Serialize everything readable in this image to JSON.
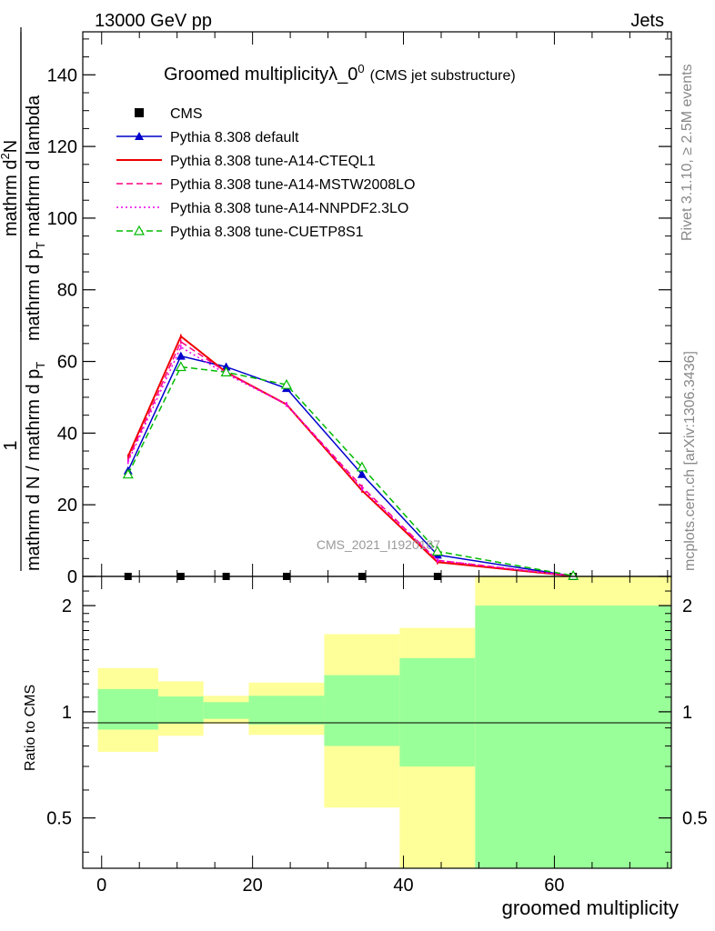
{
  "header": {
    "energy_label": "13000 GeV pp",
    "process_label": "Jets"
  },
  "side_labels": {
    "rivet": "Rivet 3.1.10, ≥ 2.5M events",
    "mcplots": "mcplots.cern.ch [arXiv:1306.3436]"
  },
  "watermark": "CMS_2021_I1920187",
  "chart_data": [
    {
      "type": "line",
      "title_main": "Groomed multiplicityλ_0",
      "title_sup": "0",
      "title_note": "(CMS jet substructure)",
      "ylabel_fraction_numerator": "1",
      "ylabel_fraction_denominator": "mathrm d N / mathrm d p",
      "ylabel_fraction_denominator_sub": "T",
      "ylabel_right_main": "mathrm d",
      "ylabel_right_sup": "2",
      "ylabel_right_rest": "N",
      "ylabel_right_denominator": "mathrm d p",
      "ylabel_right_denominator_sub": "T",
      "ylabel_right_denominator_rest": " mathrm d lambda",
      "xlim": [
        -2.5,
        75.5
      ],
      "ylim": [
        0,
        152
      ],
      "y_ticks": [
        0,
        20,
        40,
        60,
        80,
        100,
        120,
        140
      ],
      "y_tick_labels": [
        "0",
        "20",
        "40",
        "60",
        "80",
        "100",
        "120",
        "140"
      ],
      "grid": false,
      "legend_position": "top-left",
      "series": [
        {
          "name": "CMS",
          "color": "#000000",
          "style": "square-markers",
          "x": [
            3.5,
            10.5,
            16.5,
            24.5,
            34.5,
            44.5,
            62.5
          ],
          "y": [
            0,
            0,
            0,
            0,
            0,
            0,
            0
          ]
        },
        {
          "name": "Pythia 8.308 default",
          "color": "#0000cc",
          "style": "solid-filled-triangle",
          "x": [
            3.5,
            10.5,
            16.5,
            24.5,
            34.5,
            44.5,
            62.5
          ],
          "y": [
            29.5,
            61.5,
            58.5,
            52.5,
            28.5,
            6.0,
            0.1
          ]
        },
        {
          "name": "Pythia 8.308 tune-A14-CTEQL1",
          "color": "#ee0000",
          "style": "solid",
          "x": [
            3.5,
            10.5,
            16.5,
            24.5,
            34.5,
            44.5,
            62.5
          ],
          "y": [
            33.5,
            67.0,
            57.0,
            48.0,
            24.0,
            4.0,
            0.1
          ]
        },
        {
          "name": "Pythia 8.308 tune-A14-MSTW2008LO",
          "color": "#ff0080",
          "style": "dashed",
          "x": [
            3.5,
            10.5,
            16.5,
            24.5,
            34.5,
            44.5,
            62.5
          ],
          "y": [
            32.5,
            65.5,
            57.0,
            48.0,
            25.0,
            4.5,
            0.1
          ]
        },
        {
          "name": "Pythia 8.308 tune-A14-NNPDF2.3LO",
          "color": "#ee00ee",
          "style": "dotted",
          "x": [
            3.5,
            10.5,
            16.5,
            24.5,
            34.5,
            44.5,
            62.5
          ],
          "y": [
            32.0,
            64.0,
            56.5,
            48.0,
            24.5,
            4.5,
            0.1
          ]
        },
        {
          "name": "Pythia 8.308 tune-CUETP8S1",
          "color": "#00bb00",
          "style": "dashed-open-triangle",
          "x": [
            3.5,
            10.5,
            16.5,
            24.5,
            34.5,
            44.5,
            62.5
          ],
          "y": [
            28.5,
            58.5,
            57.0,
            53.5,
            30.5,
            7.0,
            0.2
          ]
        }
      ]
    },
    {
      "type": "area",
      "ylabel": "Ratio to CMS",
      "xlabel": "groomed multiplicity",
      "xlim": [
        -2.5,
        75.5
      ],
      "ylim": [
        0.36,
        2.42
      ],
      "y_scale": "log",
      "y_ticks": [
        0.5,
        1,
        2
      ],
      "y_tick_labels": [
        "0.5",
        "1",
        "2"
      ],
      "x_ticks": [
        0,
        20,
        40,
        60
      ],
      "x_tick_labels": [
        "0",
        "20",
        "40",
        "60"
      ],
      "reference_line": 1,
      "bins": [
        {
          "lo": -0.5,
          "hi": 7.5,
          "green": [
            0.89,
            1.16
          ],
          "yellow": [
            0.77,
            1.33
          ]
        },
        {
          "lo": 7.5,
          "hi": 13.5,
          "green": [
            0.925,
            1.105
          ],
          "yellow": [
            0.855,
            1.22
          ]
        },
        {
          "lo": 13.5,
          "hi": 19.5,
          "green": [
            0.955,
            1.065
          ],
          "yellow": [
            0.925,
            1.11
          ]
        },
        {
          "lo": 19.5,
          "hi": 29.5,
          "green": [
            0.92,
            1.11
          ],
          "yellow": [
            0.86,
            1.21
          ]
        },
        {
          "lo": 29.5,
          "hi": 39.5,
          "green": [
            0.8,
            1.27
          ],
          "yellow": [
            0.535,
            1.66
          ]
        },
        {
          "lo": 39.5,
          "hi": 49.5,
          "green": [
            0.7,
            1.42
          ],
          "yellow": [
            0.36,
            1.73
          ]
        },
        {
          "lo": 49.5,
          "hi": 75.5,
          "green": [
            0.36,
            2.0
          ],
          "yellow": [
            0.36,
            2.42
          ]
        }
      ],
      "colors": {
        "green": "#99ff99",
        "yellow": "#ffff99"
      }
    }
  ]
}
